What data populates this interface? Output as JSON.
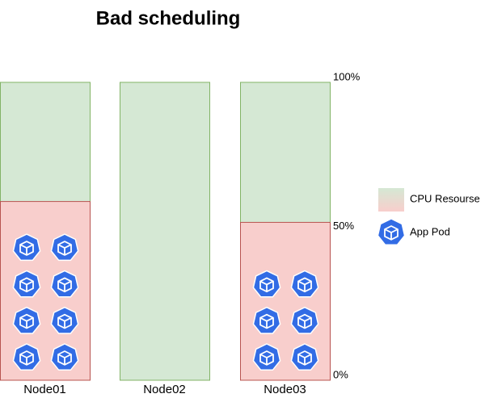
{
  "chart_data": {
    "type": "bar",
    "title": "Bad scheduling",
    "categories": [
      "Node01",
      "Node02",
      "Node03"
    ],
    "values": [
      60,
      0,
      53
    ],
    "pods": [
      8,
      0,
      6
    ],
    "ylim": [
      0,
      100
    ],
    "yticks": [
      {
        "value": 0,
        "label": "0%"
      },
      {
        "value": 50,
        "label": "50%"
      },
      {
        "value": 100,
        "label": "100%"
      }
    ],
    "capacity_color": "#d5e8d4",
    "usage_color": "#f8cecc",
    "pod_color": "#326ce5",
    "legend": {
      "capacity": "CPU Resourse",
      "pod": "App Pod"
    }
  }
}
